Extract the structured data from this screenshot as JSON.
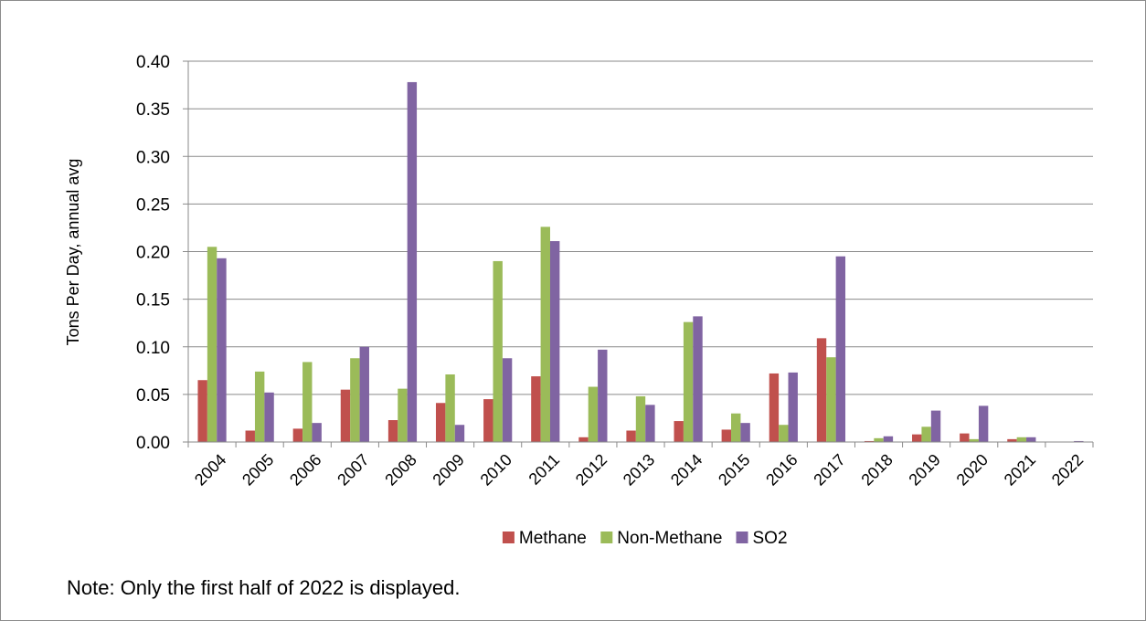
{
  "chart_data": {
    "type": "bar",
    "ylabel": "Tons Per Day, annual avg",
    "ylim": [
      0,
      0.4
    ],
    "yticks": [
      "0.00",
      "0.05",
      "0.10",
      "0.15",
      "0.20",
      "0.25",
      "0.30",
      "0.35",
      "0.40"
    ],
    "grid": true,
    "legend_position": "bottom",
    "categories": [
      "2004",
      "2005",
      "2006",
      "2007",
      "2008",
      "2009",
      "2010",
      "2011",
      "2012",
      "2013",
      "2014",
      "2015",
      "2016",
      "2017",
      "2018",
      "2019",
      "2020",
      "2021",
      "2022"
    ],
    "series": [
      {
        "name": "Methane",
        "color": "#c0504d",
        "values": [
          0.065,
          0.012,
          0.014,
          0.055,
          0.023,
          0.041,
          0.045,
          0.069,
          0.005,
          0.012,
          0.022,
          0.013,
          0.072,
          0.109,
          0.001,
          0.008,
          0.009,
          0.003,
          0.0
        ]
      },
      {
        "name": "Non-Methane",
        "color": "#9bbb59",
        "values": [
          0.205,
          0.074,
          0.084,
          0.088,
          0.056,
          0.071,
          0.19,
          0.226,
          0.058,
          0.048,
          0.126,
          0.03,
          0.018,
          0.089,
          0.004,
          0.016,
          0.003,
          0.005,
          0.0
        ]
      },
      {
        "name": "SO2",
        "color": "#8064a2",
        "values": [
          0.193,
          0.052,
          0.02,
          0.1,
          0.378,
          0.018,
          0.088,
          0.211,
          0.097,
          0.039,
          0.132,
          0.02,
          0.073,
          0.195,
          0.006,
          0.033,
          0.038,
          0.005,
          0.001
        ]
      }
    ]
  },
  "note": "Note: Only the first half of 2022 is displayed."
}
